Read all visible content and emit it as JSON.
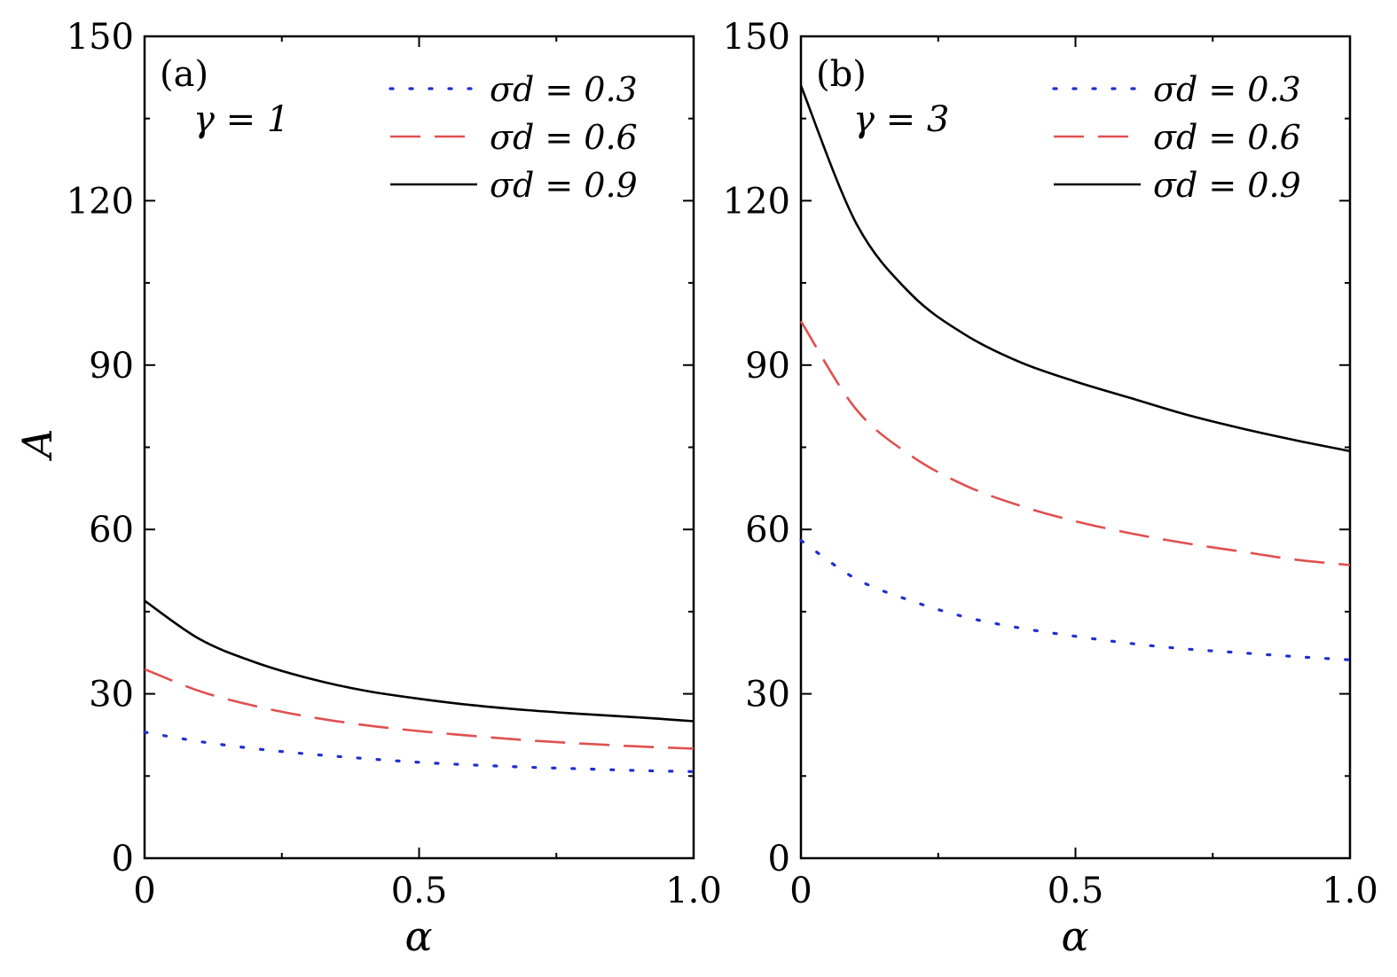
{
  "figure": {
    "ylabel": "A",
    "xlabel": "α"
  },
  "chart_data": [
    {
      "type": "line",
      "panel_label": "(a)",
      "annotation": "γ = 1",
      "xlabel": "α",
      "ylabel": "A",
      "xlim": [
        0,
        1.0
      ],
      "ylim": [
        0,
        150
      ],
      "xticks": [
        "0",
        "0.5",
        "1.0"
      ],
      "yticks": [
        "0",
        "30",
        "60",
        "90",
        "120",
        "150"
      ],
      "legend_position": "top-right",
      "x": [
        0,
        0.1,
        0.2,
        0.3,
        0.4,
        0.5,
        0.6,
        0.7,
        0.8,
        0.9,
        1.0
      ],
      "series": [
        {
          "name": "σd = 0.3",
          "style": "dotted",
          "color": "#1f2fd0",
          "values": [
            23,
            21.3,
            20,
            19,
            18.2,
            17.5,
            17,
            16.6,
            16.3,
            16,
            15.8
          ]
        },
        {
          "name": "σd = 0.6",
          "style": "dashed",
          "color": "#e05050",
          "values": [
            34.5,
            30.5,
            27.8,
            25.8,
            24.3,
            23.2,
            22.3,
            21.5,
            20.9,
            20.4,
            20.0
          ]
        },
        {
          "name": "σd = 0.9",
          "style": "solid",
          "color": "#000000",
          "values": [
            47,
            40,
            35.8,
            32.8,
            30.6,
            29.1,
            27.9,
            27.0,
            26.3,
            25.7,
            25.0
          ]
        }
      ]
    },
    {
      "type": "line",
      "panel_label": "(b)",
      "annotation": "γ = 3",
      "xlabel": "α",
      "ylabel": "",
      "xlim": [
        0,
        1.0
      ],
      "ylim": [
        0,
        150
      ],
      "xticks": [
        "0",
        "0.5",
        "1.0"
      ],
      "yticks": [
        "0",
        "30",
        "60",
        "90",
        "120",
        "150"
      ],
      "legend_position": "top-right",
      "x": [
        0,
        0.1,
        0.2,
        0.3,
        0.4,
        0.5,
        0.6,
        0.7,
        0.8,
        0.9,
        1.0
      ],
      "series": [
        {
          "name": "σd = 0.3",
          "style": "dotted",
          "color": "#1f2fd0",
          "values": [
            58,
            51,
            47,
            44,
            42,
            40.5,
            39.2,
            38.2,
            37.5,
            36.8,
            36.2
          ]
        },
        {
          "name": "σd = 0.6",
          "style": "dashed",
          "color": "#e05050",
          "values": [
            98,
            82,
            73.5,
            68,
            64.3,
            61.5,
            59.3,
            57.5,
            56,
            54.5,
            53.5
          ]
        },
        {
          "name": "σd = 0.9",
          "style": "solid",
          "color": "#000000",
          "values": [
            141,
            116,
            103,
            95.5,
            90.5,
            87,
            84,
            81,
            78.5,
            76.3,
            74.3
          ]
        }
      ]
    }
  ]
}
